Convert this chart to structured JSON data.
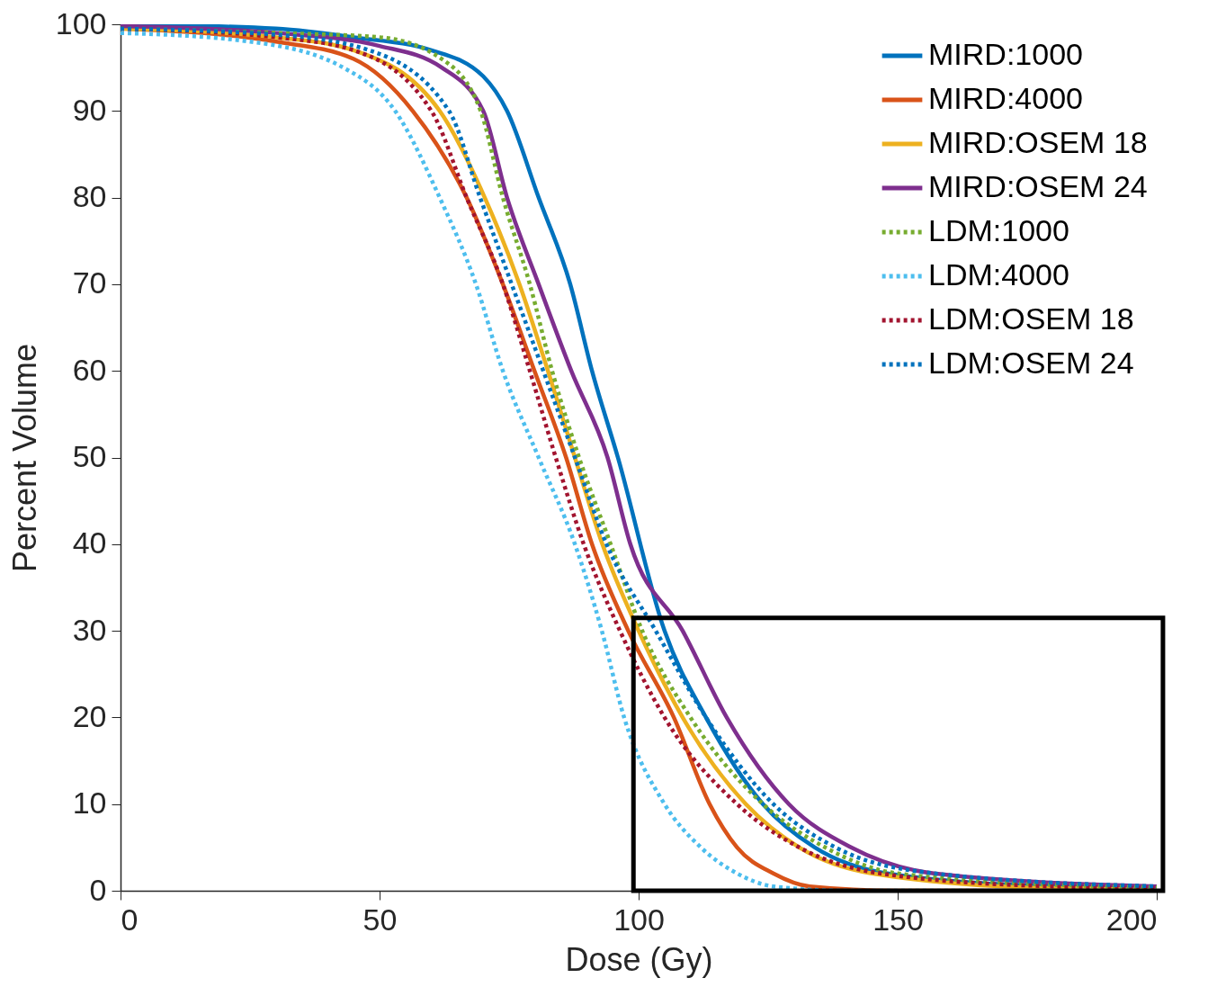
{
  "chart_data": {
    "type": "line",
    "xlabel": "Dose (Gy)",
    "ylabel": "Percent Volume",
    "xlim": [
      0,
      200
    ],
    "ylim": [
      0,
      100
    ],
    "xticks": [
      0,
      50,
      100,
      150,
      200
    ],
    "yticks": [
      0,
      10,
      20,
      30,
      40,
      50,
      60,
      70,
      80,
      90,
      100
    ],
    "grid": false,
    "legend": "top right",
    "marker": "none",
    "series": [
      {
        "name": "MIRD:1000",
        "color": "#0072bd",
        "line_style": "solid",
        "x": [
          0,
          30,
          45,
          60,
          70,
          74.6,
          80.7,
          86.8,
          91,
          96,
          105,
          113,
          124,
          134,
          148,
          180,
          200
        ],
        "values": [
          100,
          99.5,
          98.5,
          97,
          94,
          90,
          80,
          70,
          60,
          50,
          30,
          20,
          10,
          5,
          2,
          0.5,
          0.3
        ]
      },
      {
        "name": "MIRD:4000",
        "color": "#d95319",
        "line_style": "solid",
        "x": [
          0,
          30,
          45,
          56.4,
          66.8,
          73.8,
          79.9,
          86,
          91,
          98,
          106.8,
          113.7,
          119,
          126,
          133,
          150,
          200
        ],
        "values": [
          99.5,
          98,
          96,
          90,
          80,
          70,
          60,
          50,
          40,
          30,
          20,
          10,
          5,
          2,
          0.5,
          0,
          0
        ]
      },
      {
        "name": "MIRD:OSEM 18",
        "color": "#edb120",
        "line_style": "solid",
        "x": [
          0,
          30,
          45,
          61.6,
          70.3,
          77,
          82.5,
          87.7,
          93,
          100,
          108.5,
          120.7,
          131,
          145,
          180,
          200
        ],
        "values": [
          99.5,
          98.5,
          97,
          90,
          80,
          70,
          60,
          50,
          40,
          30,
          20,
          10,
          5,
          2,
          0.3,
          0.2
        ]
      },
      {
        "name": "MIRD:OSEM 24",
        "color": "#7e2f8e",
        "line_style": "solid",
        "x": [
          0,
          30,
          50,
          62,
          70,
          74.6,
          80.7,
          87,
          94,
          98.4,
          108.5,
          117,
          129,
          141,
          157,
          200
        ],
        "values": [
          99.8,
          99,
          97.5,
          95,
          90,
          80,
          70,
          60,
          50,
          40,
          30,
          20,
          10,
          5,
          2,
          0.5
        ]
      },
      {
        "name": "LDM:1000",
        "color": "#77ac30",
        "line_style": "dotted",
        "x": [
          0,
          30,
          50,
          62,
          69.5,
          73.8,
          79,
          83.3,
          88.5,
          94.6,
          100.7,
          110,
          124,
          136,
          150,
          190,
          200
        ],
        "values": [
          99.5,
          99,
          98.5,
          96,
          90,
          80,
          70,
          60,
          50,
          40,
          30,
          20,
          10,
          5,
          2,
          0.5,
          0.4
        ]
      },
      {
        "name": "LDM:4000",
        "color": "#4dbeee",
        "line_style": "dotted",
        "x": [
          0,
          25,
          43,
          53,
          61.6,
          68.6,
          73.8,
          80.7,
          87.7,
          92.9,
          97.2,
          105,
          112,
          119,
          126,
          140,
          200
        ],
        "values": [
          99,
          98,
          95,
          90,
          80,
          70,
          60,
          50,
          40,
          30,
          20,
          10,
          5,
          2,
          0.5,
          0,
          0
        ]
      },
      {
        "name": "LDM:OSEM 18",
        "color": "#a2142f",
        "line_style": "dotted",
        "x": [
          0,
          30,
          45,
          60,
          66.8,
          73.8,
          79,
          84,
          89.4,
          96.4,
          105,
          119,
          131,
          146.7,
          180,
          200
        ],
        "values": [
          99.5,
          98.5,
          97,
          90,
          80,
          70,
          60,
          50,
          40,
          30,
          20,
          10,
          5,
          2,
          0.5,
          0.3
        ]
      },
      {
        "name": "LDM:OSEM 24",
        "color": "#0072bd",
        "line_style": "dotted",
        "x": [
          0,
          30,
          48,
          63.4,
          69.4,
          75.5,
          81.6,
          87.7,
          93.8,
          103.3,
          113,
          126,
          138,
          157,
          200
        ],
        "values": [
          99.5,
          98.8,
          97,
          90,
          80,
          70,
          60,
          50,
          40,
          30,
          20,
          10,
          5,
          2,
          0.5
        ]
      }
    ]
  }
}
